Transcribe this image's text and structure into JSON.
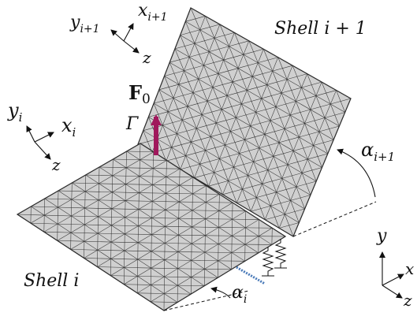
{
  "figure": {
    "shell_top_label": "Shell i + 1",
    "shell_bottom_label": "Shell i",
    "force": {
      "symbol": "F",
      "subscript": "0"
    },
    "gamma": "Γ",
    "angle_top": {
      "symbol": "α",
      "subscript": "i+1"
    },
    "angle_bottom": {
      "symbol": "α",
      "subscript": "i"
    },
    "frame_top": {
      "y": "y",
      "y_sub": "i+1",
      "x": "x",
      "x_sub": "i+1",
      "z": "z"
    },
    "frame_mid": {
      "y": "y",
      "y_sub": "i",
      "x": "x",
      "x_sub": "i",
      "z": "z"
    },
    "frame_global": {
      "y": "y",
      "x": "x",
      "z": "z"
    }
  },
  "colors": {
    "mesh_fill": "#d0d0d0",
    "mesh_line": "#333333",
    "force_arrow": "#a0185c",
    "axes": "#111111",
    "damper": "#4a7ab8"
  }
}
